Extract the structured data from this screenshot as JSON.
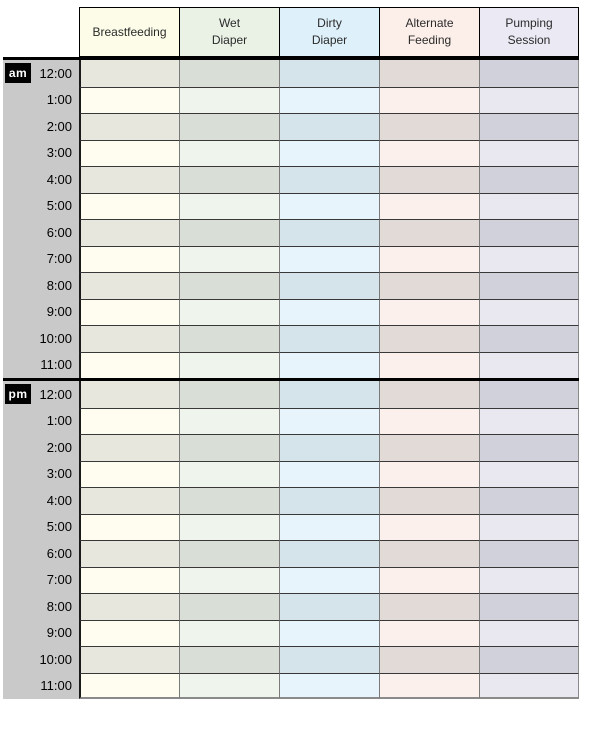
{
  "page": {
    "background": "#ffffff"
  },
  "table": {
    "time_column": {
      "bg": "#c9c9c9",
      "text_color": "#000000"
    },
    "meridiem_badge": {
      "bg": "#000000",
      "text_color": "#ffffff"
    },
    "grid_colors": {
      "row_separator": "#383838",
      "column_separator": "#7a7a7a",
      "time_divider": "#1a1a1a",
      "outer_border": "#8a8a8a",
      "thick_bar": "#000000",
      "header_border": "#000000"
    },
    "columns": [
      {
        "id": "breastfeeding",
        "label": "Breastfeeding",
        "label_lines": [
          "Breastfeeding"
        ],
        "header_bg": "#fcfce9",
        "row_light": "#fffdf0",
        "row_dark": "#e8e7dd"
      },
      {
        "id": "wet-diaper",
        "label": "Wet Diaper",
        "label_lines": [
          "Wet",
          "Diaper"
        ],
        "header_bg": "#eaf2e6",
        "row_light": "#eff5ec",
        "row_dark": "#d9dfd6"
      },
      {
        "id": "dirty-diaper",
        "label": "Dirty Diaper",
        "label_lines": [
          "Dirty",
          "Diaper"
        ],
        "header_bg": "#def0fa",
        "row_light": "#e8f4fc",
        "row_dark": "#d5e3eb"
      },
      {
        "id": "alternate-feeding",
        "label": "Alternate Feeding",
        "label_lines": [
          "Alternate",
          "Feeding"
        ],
        "header_bg": "#fcefe9",
        "row_light": "#fbf0ec",
        "row_dark": "#e2dad6"
      },
      {
        "id": "pumping-session",
        "label": "Pumping Session",
        "label_lines": [
          "Pumping",
          "Session"
        ],
        "header_bg": "#eae9f4",
        "row_light": "#e9e7f0",
        "row_dark": "#d1d1dc"
      }
    ],
    "sections": [
      {
        "meridiem": "am",
        "times": [
          "12:00",
          "1:00",
          "2:00",
          "3:00",
          "4:00",
          "5:00",
          "6:00",
          "7:00",
          "8:00",
          "9:00",
          "10:00",
          "11:00"
        ]
      },
      {
        "meridiem": "pm",
        "times": [
          "12:00",
          "1:00",
          "2:00",
          "3:00",
          "4:00",
          "5:00",
          "6:00",
          "7:00",
          "8:00",
          "9:00",
          "10:00",
          "11:00"
        ]
      }
    ]
  }
}
